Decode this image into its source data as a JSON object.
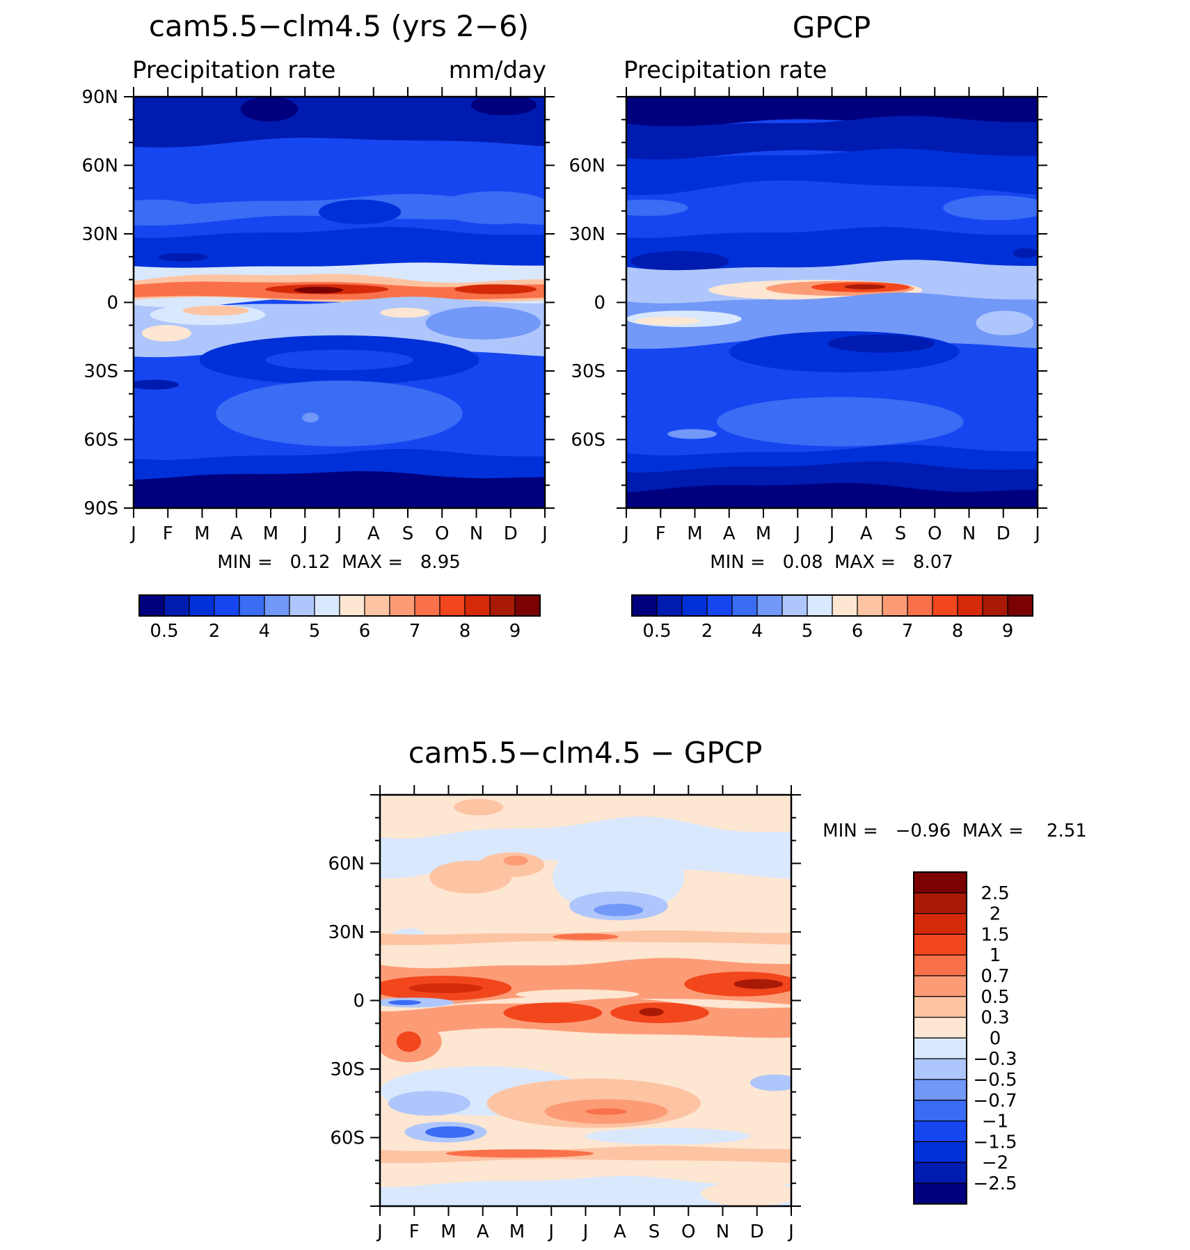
{
  "figure": {
    "months": [
      "J",
      "F",
      "M",
      "A",
      "M",
      "J",
      "J",
      "A",
      "S",
      "O",
      "N",
      "D",
      "J"
    ],
    "lat_ticks_full": [
      "90N",
      "60N",
      "30N",
      "0",
      "30S",
      "60S",
      "90S"
    ],
    "lat_ticks_inner": [
      "60N",
      "30N",
      "0",
      "30S",
      "60S"
    ],
    "colors": {
      "precip": [
        "#00007f",
        "#001bb0",
        "#0030d8",
        "#1646f0",
        "#3a6cf4",
        "#7298f8",
        "#aec6fb",
        "#d9e8fd",
        "#fde6d2",
        "#fdc4a3",
        "#fc9c76",
        "#f9714a",
        "#f2461d",
        "#d52a0a",
        "#a81a05",
        "#7a0203"
      ],
      "diff": [
        "#00007f",
        "#001bb0",
        "#0030d8",
        "#1646f0",
        "#3a6cf4",
        "#7298f8",
        "#aec6fb",
        "#d9e8fd",
        "#fde6d2",
        "#fdc4a3",
        "#fc9c76",
        "#f9714a",
        "#f2461d",
        "#d52a0a",
        "#a81a05",
        "#7a0203"
      ]
    }
  },
  "panel_model": {
    "title": "cam5.5−clm4.5 (yrs 2−6)",
    "left_label": "Precipitation rate",
    "right_label": "mm/day",
    "stats": "MIN =   0.12  MAX =   8.95",
    "colorbar_labels": [
      "0.5",
      "2",
      "4",
      "5",
      "6",
      "7",
      "8",
      "9"
    ]
  },
  "panel_obs": {
    "title": "GPCP",
    "left_label": "Precipitation rate",
    "stats": "MIN =   0.08  MAX =   8.07",
    "colorbar_labels": [
      "0.5",
      "2",
      "4",
      "5",
      "6",
      "7",
      "8",
      "9"
    ]
  },
  "panel_diff": {
    "title": "cam5.5−clm4.5 − GPCP",
    "stats": "MIN =   −0.96  MAX =    2.51",
    "colorbar_labels": [
      "2.5",
      "2",
      "1.5",
      "1",
      "0.7",
      "0.5",
      "0.3",
      "0",
      "−0.3",
      "−0.5",
      "−0.7",
      "−1",
      "−1.5",
      "−2",
      "−2.5"
    ]
  },
  "chart_data": [
    {
      "type": "heatmap",
      "title": "cam5.5−clm4.5 (yrs 2−6)",
      "variable": "Precipitation rate",
      "units": "mm/day",
      "x": [
        "J",
        "F",
        "M",
        "A",
        "M",
        "J",
        "J",
        "A",
        "S",
        "O",
        "N",
        "D",
        "J"
      ],
      "y_ticks": [
        "90N",
        "60N",
        "30N",
        "0",
        "30S",
        "60S",
        "90S"
      ],
      "min": 0.12,
      "max": 8.95,
      "levels": [
        0.2,
        0.5,
        1,
        2,
        3,
        4,
        4.5,
        5,
        5.5,
        6,
        6.5,
        7,
        7.5,
        8,
        8.5,
        9
      ]
    },
    {
      "type": "heatmap",
      "title": "GPCP",
      "variable": "Precipitation rate",
      "x": [
        "J",
        "F",
        "M",
        "A",
        "M",
        "J",
        "J",
        "A",
        "S",
        "O",
        "N",
        "D",
        "J"
      ],
      "y_ticks": [
        "60N",
        "30N",
        "0",
        "30S",
        "60S"
      ],
      "min": 0.08,
      "max": 8.07,
      "levels": [
        0.2,
        0.5,
        1,
        2,
        3,
        4,
        4.5,
        5,
        5.5,
        6,
        6.5,
        7,
        7.5,
        8,
        8.5,
        9
      ]
    },
    {
      "type": "heatmap",
      "title": "cam5.5−clm4.5 − GPCP",
      "x": [
        "J",
        "F",
        "M",
        "A",
        "M",
        "J",
        "J",
        "A",
        "S",
        "O",
        "N",
        "D",
        "J"
      ],
      "y_ticks": [
        "60N",
        "30N",
        "0",
        "30S",
        "60S"
      ],
      "min": -0.96,
      "max": 2.51,
      "levels": [
        -2.5,
        -2,
        -1.5,
        -1,
        -0.7,
        -0.5,
        -0.3,
        0,
        0.3,
        0.5,
        0.7,
        1,
        1.5,
        2,
        2.5
      ]
    }
  ]
}
